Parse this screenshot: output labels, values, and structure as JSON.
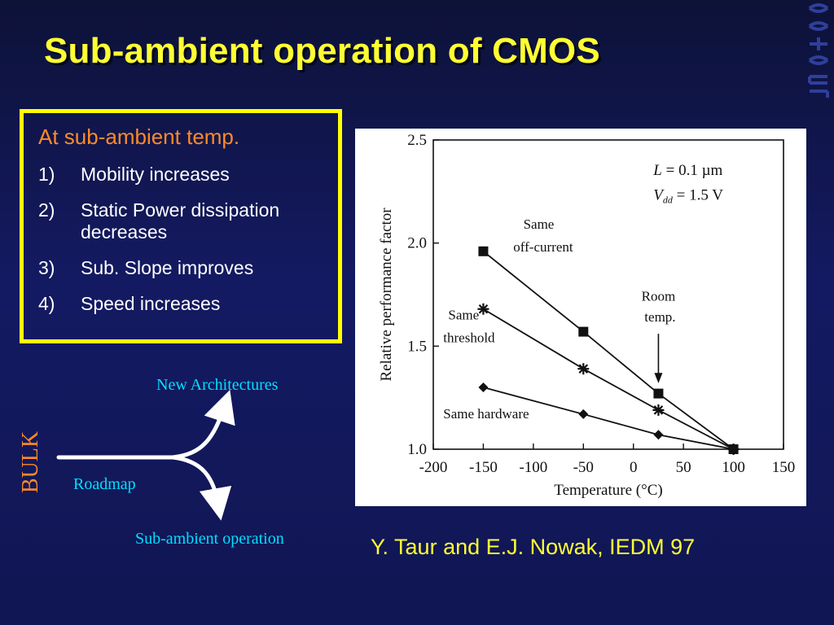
{
  "slide": {
    "title": "Sub-ambient operation of CMOS",
    "colors": {
      "background": "#141a62",
      "title": "#ffff33",
      "box_border": "#ffff00",
      "box_heading": "#ff8a2a",
      "diagram_labels": "#00e0ff",
      "bulk_label": "#ff8a2a"
    }
  },
  "box": {
    "heading": "At sub-ambient temp.",
    "items": [
      {
        "num": "1)",
        "text": "Mobility increases"
      },
      {
        "num": "2)",
        "text": "Static Power dissipation decreases"
      },
      {
        "num": "3)",
        "text": "Sub. Slope improves"
      },
      {
        "num": "4)",
        "text": "Speed increases"
      }
    ]
  },
  "diagram": {
    "top_label": "New Architectures",
    "left_label": "Roadmap",
    "bottom_label": "Sub-ambient operation",
    "vertical_label": "BULK"
  },
  "citation": "Y. Taur and E.J. Nowak, IEDM 97",
  "chart_data": {
    "type": "line",
    "title": "",
    "xlabel": "Temperature (°C)",
    "ylabel": "Relative performance factor",
    "xlim": [
      -200,
      150
    ],
    "ylim": [
      1.0,
      2.5
    ],
    "x_ticks": [
      -200,
      -150,
      -100,
      -50,
      0,
      50,
      100,
      150
    ],
    "x_tick_labels": [
      "-200",
      "-150",
      "-100",
      "-50",
      "0",
      "50",
      "100",
      "150"
    ],
    "y_ticks": [
      1.0,
      1.5,
      2.0,
      2.5
    ],
    "y_tick_labels": [
      "1.0",
      "1.5",
      "2.0",
      "2.5"
    ],
    "grid": false,
    "legend": "none",
    "series": [
      {
        "name": "Same off-current",
        "marker": "square",
        "x": [
          -150,
          -50,
          25,
          100
        ],
        "y": [
          1.96,
          1.57,
          1.27,
          1.0
        ]
      },
      {
        "name": "Same threshold",
        "marker": "star",
        "x": [
          -150,
          -50,
          25,
          100
        ],
        "y": [
          1.68,
          1.39,
          1.19,
          1.0
        ]
      },
      {
        "name": "Same hardware",
        "marker": "diamond",
        "x": [
          -150,
          -50,
          25,
          100
        ],
        "y": [
          1.3,
          1.17,
          1.07,
          1.0
        ]
      }
    ],
    "series_labels": [
      "Same",
      "off-current",
      "Same",
      "threshold",
      "Same hardware"
    ],
    "annotations": {
      "param_l_prefix": "L",
      "param_l_value": " = 0.1 µm",
      "param_v_prefix": "V",
      "param_v_sub": "dd",
      "param_v_value": " = 1.5 V",
      "room_temp_line1": "Room",
      "room_temp_line2": "temp."
    },
    "room_temp_x": 25
  }
}
